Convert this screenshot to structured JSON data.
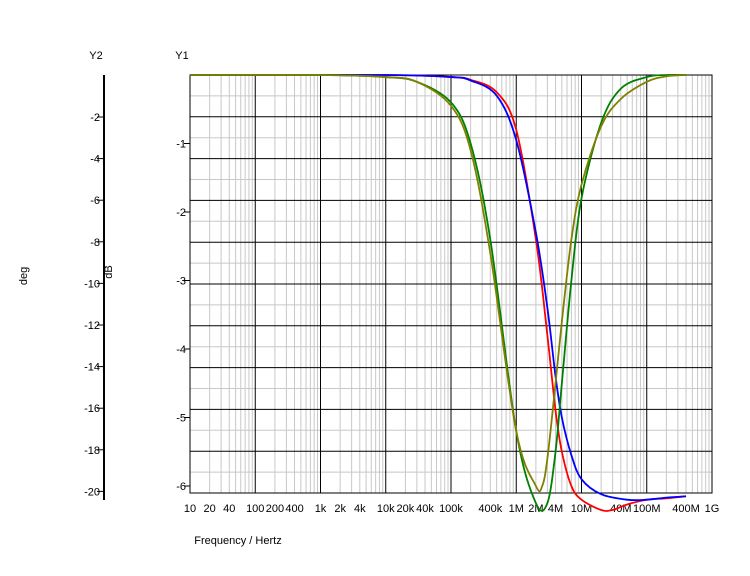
{
  "chart_data": {
    "type": "line",
    "x_scale": "log",
    "xlabel": "Frequency / Hertz",
    "y1_axis_title": "Y1",
    "y2_axis_title": "Y2",
    "y1_label": "dB",
    "y2_label": "deg",
    "y1_ticks": [
      "-1",
      "-2",
      "-3",
      "-4",
      "-5",
      "-6"
    ],
    "y2_ticks": [
      "-2",
      "-4",
      "-6",
      "-8",
      "-10",
      "-12",
      "-14",
      "-16",
      "-18",
      "-20"
    ],
    "x_ticks": [
      {
        "f": 10,
        "label": "10"
      },
      {
        "f": 20,
        "label": "20"
      },
      {
        "f": 40,
        "label": "40"
      },
      {
        "f": 100,
        "label": "100"
      },
      {
        "f": 200,
        "label": "200"
      },
      {
        "f": 400,
        "label": "400"
      },
      {
        "f": 1000,
        "label": "1k"
      },
      {
        "f": 2000,
        "label": "2k"
      },
      {
        "f": 4000,
        "label": "4k"
      },
      {
        "f": 10000,
        "label": "10k"
      },
      {
        "f": 20000,
        "label": "20k"
      },
      {
        "f": 40000,
        "label": "40k"
      },
      {
        "f": 100000,
        "label": "100k"
      },
      {
        "f": 400000,
        "label": "400k"
      },
      {
        "f": 1000000,
        "label": "1M"
      },
      {
        "f": 2000000,
        "label": "2M"
      },
      {
        "f": 4000000,
        "label": "4M"
      },
      {
        "f": 10000000,
        "label": "10M"
      },
      {
        "f": 40000000,
        "label": "40M"
      },
      {
        "f": 100000000,
        "label": "100M"
      },
      {
        "f": 400000000,
        "label": "400M"
      },
      {
        "f": 1000000000,
        "label": "1G"
      }
    ],
    "xlim": [
      10,
      1000000000
    ],
    "y1_lim": [
      -6.3,
      0.2
    ],
    "series": [
      {
        "color": "#ff0000",
        "axis": "y1",
        "x": [
          10,
          10000,
          100000,
          200000,
          500000,
          1000000,
          2000000,
          3000000,
          4000000,
          5000000,
          7000000,
          10000000,
          20000000,
          30000000,
          50000000,
          100000000,
          200000000,
          400000000
        ],
        "y": [
          0,
          0,
          -0.03,
          -0.07,
          -0.25,
          -0.8,
          -2.4,
          -3.8,
          -4.9,
          -5.5,
          -6.0,
          -6.2,
          -6.35,
          -6.35,
          -6.27,
          -6.2,
          -6.18,
          -6.15
        ]
      },
      {
        "color": "#0000ff",
        "axis": "y1",
        "x": [
          10,
          10000,
          100000,
          200000,
          500000,
          1000000,
          2000000,
          3000000,
          4000000,
          5000000,
          7000000,
          10000000,
          20000000,
          50000000,
          100000000,
          200000000,
          400000000
        ],
        "y": [
          0,
          0,
          -0.03,
          -0.08,
          -0.3,
          -0.95,
          -2.3,
          -3.4,
          -4.4,
          -5.0,
          -5.55,
          -5.9,
          -6.12,
          -6.2,
          -6.2,
          -6.17,
          -6.15
        ]
      },
      {
        "color": "#008000",
        "axis": "y1",
        "x": [
          10,
          1000,
          10000,
          30000,
          100000,
          200000,
          400000,
          1000000,
          2000000,
          3000000,
          4000000,
          5000000,
          7000000,
          10000000,
          20000000,
          40000000,
          100000000,
          200000000,
          400000000
        ],
        "y": [
          0,
          0,
          -0.03,
          -0.1,
          -0.4,
          -1.0,
          -2.4,
          -5.2,
          -6.25,
          -6.25,
          -5.5,
          -4.5,
          -3.0,
          -1.8,
          -0.7,
          -0.2,
          -0.03,
          0,
          0
        ]
      },
      {
        "color": "#808000",
        "axis": "y1",
        "x": [
          10,
          1000,
          10000,
          30000,
          100000,
          200000,
          400000,
          1000000,
          2000000,
          2500000,
          3000000,
          4000000,
          5000000,
          7000000,
          10000000,
          20000000,
          40000000,
          100000000,
          200000000,
          400000000
        ],
        "y": [
          0,
          0,
          -0.03,
          -0.1,
          -0.45,
          -1.1,
          -2.6,
          -5.2,
          -6.0,
          -6.0,
          -5.6,
          -4.5,
          -3.6,
          -2.4,
          -1.6,
          -0.75,
          -0.35,
          -0.1,
          -0.02,
          0
        ]
      }
    ]
  }
}
